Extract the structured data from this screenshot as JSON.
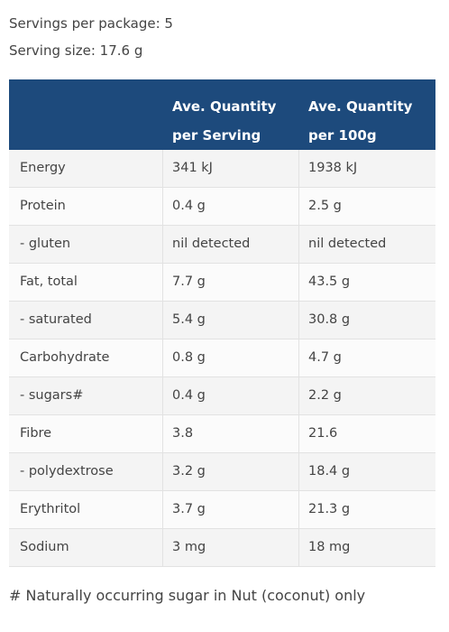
{
  "header": {
    "servings": "Servings per package: 5",
    "serving_size": "Serving size: 17.6 g"
  },
  "table": {
    "columns": [
      [],
      [
        "Ave. Quantity",
        "per Serving"
      ],
      [
        "Ave. Quantity",
        "per 100g"
      ]
    ],
    "rows": [
      [
        "Energy",
        "341 kJ",
        "1938 kJ"
      ],
      [
        "Protein",
        "0.4 g",
        "2.5 g"
      ],
      [
        "- gluten",
        "nil detected",
        "nil detected"
      ],
      [
        "Fat, total",
        "7.7 g",
        "43.5 g"
      ],
      [
        "- saturated",
        "5.4 g",
        "30.8 g"
      ],
      [
        "Carbohydrate",
        "0.8 g",
        "4.7 g"
      ],
      [
        "- sugars#",
        "0.4 g",
        "2.2 g"
      ],
      [
        "Fibre",
        "3.8",
        "21.6"
      ],
      [
        "- polydextrose",
        "3.2 g",
        "18.4 g"
      ],
      [
        "Erythritol",
        "3.7 g",
        "21.3 g"
      ],
      [
        "Sodium",
        "3 mg",
        "18 mg"
      ]
    ]
  },
  "footnote": "# Naturally occurring sugar in Nut (coconut) only"
}
